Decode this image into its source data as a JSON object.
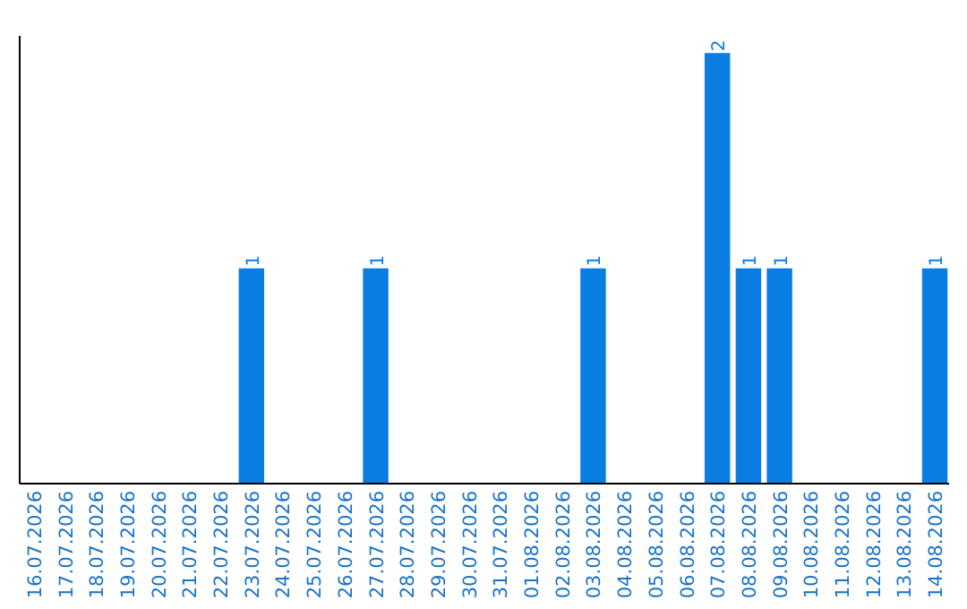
{
  "chart_data": {
    "type": "bar",
    "categories": [
      "16.07.2026",
      "17.07.2026",
      "18.07.2026",
      "19.07.2026",
      "20.07.2026",
      "21.07.2026",
      "22.07.2026",
      "23.07.2026",
      "24.07.2026",
      "25.07.2026",
      "26.07.2026",
      "27.07.2026",
      "28.07.2026",
      "29.07.2026",
      "30.07.2026",
      "31.07.2026",
      "01.08.2026",
      "02.08.2026",
      "03.08.2026",
      "04.08.2026",
      "05.08.2026",
      "06.08.2026",
      "07.08.2026",
      "08.08.2026",
      "09.08.2026",
      "10.08.2026",
      "11.08.2026",
      "12.08.2026",
      "13.08.2026",
      "14.08.2026"
    ],
    "values": [
      0,
      0,
      0,
      0,
      0,
      0,
      0,
      1,
      0,
      0,
      0,
      1,
      0,
      0,
      0,
      0,
      0,
      0,
      1,
      0,
      0,
      0,
      2,
      1,
      1,
      0,
      0,
      0,
      0,
      1
    ],
    "value_labels": [
      null,
      null,
      null,
      null,
      null,
      null,
      null,
      "1",
      null,
      null,
      null,
      "1",
      null,
      null,
      null,
      null,
      null,
      null,
      "1",
      null,
      null,
      null,
      "2",
      "1",
      "1",
      null,
      null,
      null,
      null,
      "1"
    ],
    "color": "#0a7de3",
    "tick_labels": "x"
  }
}
